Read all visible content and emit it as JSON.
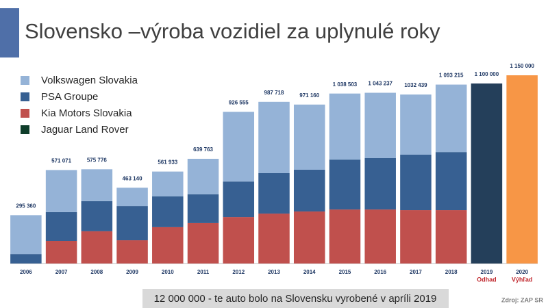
{
  "chart_data": {
    "type": "stacked_bar",
    "title": "Slovensko –výroba vozidiel za uplynulé roky",
    "categories": [
      "2006",
      "2007",
      "2008",
      "2009",
      "2010",
      "2011",
      "2012",
      "2013",
      "2014",
      "2015",
      "2016",
      "2017",
      "2018",
      "2019",
      "2020"
    ],
    "category_notes": [
      null,
      null,
      null,
      null,
      null,
      null,
      null,
      null,
      null,
      null,
      null,
      null,
      null,
      "Odhad",
      "Výhľad"
    ],
    "series": [
      {
        "name": "Kia Motors Slovakia",
        "color": "#c0504d",
        "values": [
          null,
          138000,
          197000,
          142000,
          222000,
          247000,
          284000,
          305000,
          318000,
          330000,
          330000,
          326000,
          326000,
          null,
          null
        ]
      },
      {
        "name": "PSA Groupe",
        "color": "#376092",
        "values": [
          58000,
          176000,
          184000,
          209000,
          188000,
          176000,
          217000,
          247000,
          255000,
          305000,
          314000,
          339000,
          355000,
          null,
          null
        ]
      },
      {
        "name": "Volkswagen Slovakia",
        "color": "#95b3d7",
        "values": [
          237360,
          257071,
          194776,
          112140,
          151933,
          216763,
          425555,
          435718,
          398160,
          403503,
          399237,
          367439,
          412215,
          null,
          null
        ]
      },
      {
        "name": "Jaguar Land Rover",
        "color": "#0f3d2a",
        "values": [
          null,
          null,
          null,
          null,
          null,
          null,
          null,
          null,
          null,
          null,
          null,
          null,
          null,
          null,
          null
        ]
      }
    ],
    "legend_order": [
      2,
      1,
      0,
      3
    ],
    "totals": [
      295360,
      571071,
      575776,
      463140,
      561933,
      639763,
      926555,
      987718,
      971160,
      1038503,
      1043237,
      1032439,
      1093215,
      1100000,
      1150000
    ],
    "value_labels": [
      "295 360",
      "571 071",
      "575 776",
      "463 140",
      "561 933",
      "639 763",
      "926 555",
      "987 718",
      "971 160",
      "1 038 503",
      "1 043 237",
      "1032 439",
      "1 093 215",
      "1 100 000",
      "1 150 000"
    ],
    "total_bar_colors": [
      null,
      null,
      null,
      null,
      null,
      null,
      null,
      null,
      null,
      null,
      null,
      null,
      null,
      "#243f5a",
      "#f79646"
    ],
    "note_colors": [
      null,
      null,
      null,
      null,
      null,
      null,
      null,
      null,
      null,
      null,
      null,
      null,
      null,
      "#c0272d",
      "#c0272d"
    ],
    "footnote": "12 000 000 - te auto bolo na Slovensku vyrobené v apríli 2019",
    "source": "Zdroj: ZAP SR"
  }
}
